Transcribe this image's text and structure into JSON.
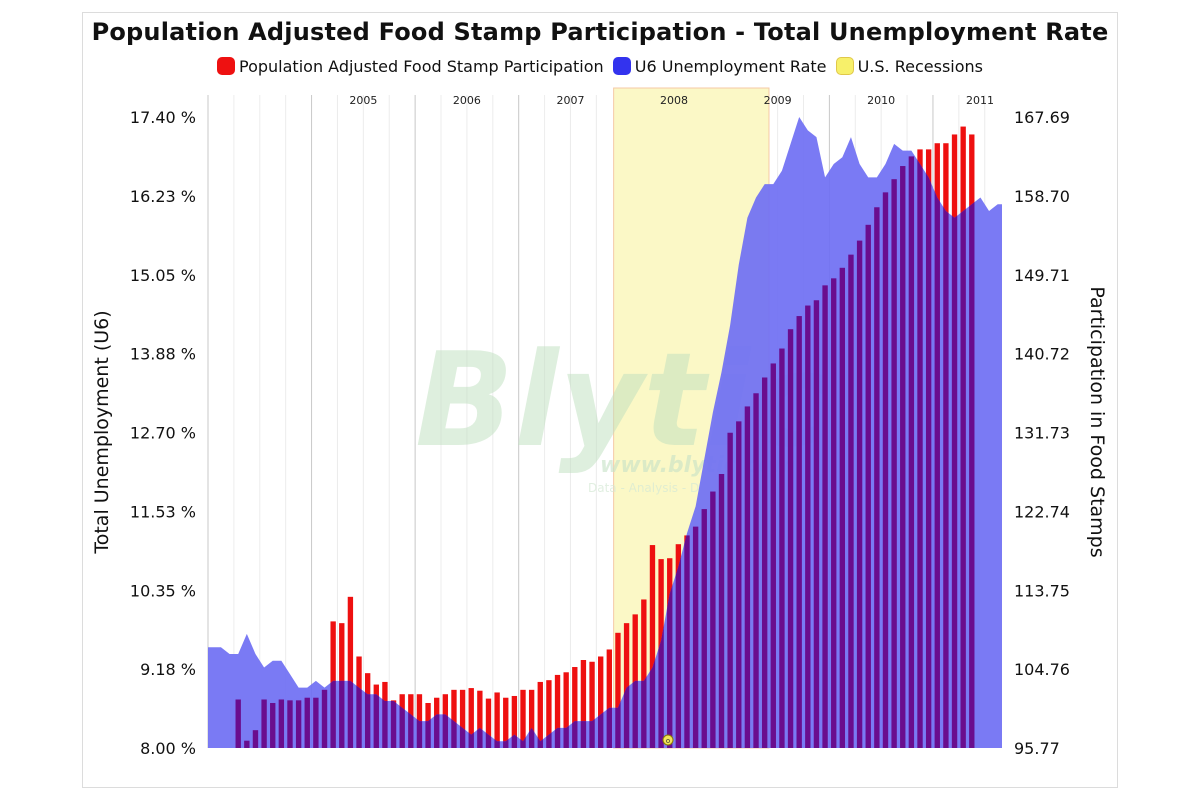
{
  "title": "Population Adjusted Food Stamp Participation - Total Unemployment Rate",
  "legend": [
    {
      "label": "Population Adjusted Food Stamp Participation",
      "color": "#ee1111"
    },
    {
      "label": "U6 Unemployment Rate",
      "color": "#3333ee"
    },
    {
      "label": "U.S. Recessions",
      "color": "#f7f06a"
    }
  ],
  "watermark": {
    "logo": "Blytic",
    "url": "www.blytic.com",
    "tagline": "Data - Analysis - D"
  },
  "marker_label": "o",
  "chart_data": {
    "type": "bar+area",
    "title": "Population Adjusted Food Stamp Participation - Total Unemployment Rate",
    "left_axis": {
      "label": "Total Unemployment (U6)",
      "ticks": [
        "17.40 %",
        "16.23 %",
        "15.05 %",
        "13.88 %",
        "12.70 %",
        "11.53 %",
        "10.35 %",
        "9.18 %",
        "8.00 %"
      ],
      "range": [
        8.0,
        17.4
      ]
    },
    "right_axis": {
      "label": "Participation in Food Stamps",
      "ticks": [
        "167.69",
        "158.70",
        "149.71",
        "140.72",
        "131.73",
        "122.74",
        "113.75",
        "104.76",
        "95.77"
      ],
      "range": [
        95.77,
        167.69
      ]
    },
    "x_labels": [
      "2005",
      "2006",
      "2007",
      "2008",
      "2009",
      "2010",
      "2011"
    ],
    "recession": {
      "start": "2007-12",
      "end": "2009-06"
    },
    "series": [
      {
        "name": "U6 Unemployment Rate",
        "type": "area",
        "axis": "left",
        "start": "2004-01",
        "values": [
          9.5,
          9.5,
          9.4,
          9.4,
          9.7,
          9.4,
          9.2,
          9.3,
          9.3,
          9.1,
          8.9,
          8.9,
          9.0,
          8.9,
          9.0,
          9.0,
          9.0,
          8.9,
          8.8,
          8.8,
          8.7,
          8.7,
          8.6,
          8.5,
          8.4,
          8.4,
          8.5,
          8.5,
          8.4,
          8.3,
          8.2,
          8.3,
          8.2,
          8.1,
          8.1,
          8.2,
          8.1,
          8.3,
          8.1,
          8.2,
          8.3,
          8.3,
          8.4,
          8.4,
          8.4,
          8.5,
          8.6,
          8.6,
          8.9,
          9.0,
          9.0,
          9.2,
          9.6,
          10.3,
          10.7,
          11.2,
          11.6,
          12.3,
          13.0,
          13.6,
          14.3,
          15.2,
          15.9,
          16.2,
          16.4,
          16.4,
          16.6,
          17.0,
          17.4,
          17.2,
          17.1,
          16.5,
          16.7,
          16.8,
          17.1,
          16.7,
          16.5,
          16.5,
          16.7,
          17.0,
          16.9,
          16.9,
          16.7,
          16.5,
          16.2,
          16.0,
          15.9,
          16.0,
          16.1,
          16.2,
          16.0,
          16.1
        ]
      },
      {
        "name": "Population Adjusted Food Stamp Participation",
        "type": "bar",
        "axis": "right",
        "start": "2004-04",
        "values": [
          101.3,
          96.6,
          97.8,
          101.3,
          100.9,
          101.3,
          101.2,
          101.2,
          101.5,
          101.5,
          102.4,
          110.2,
          110.0,
          113.0,
          106.2,
          104.3,
          103.0,
          103.3,
          101.2,
          101.9,
          101.9,
          101.9,
          100.9,
          101.5,
          101.9,
          102.4,
          102.4,
          102.6,
          102.3,
          101.4,
          102.1,
          101.5,
          101.7,
          102.4,
          102.4,
          103.3,
          103.5,
          104.1,
          104.4,
          105.0,
          105.8,
          105.6,
          106.2,
          107.0,
          108.9,
          110.0,
          111.0,
          112.7,
          118.9,
          117.3,
          117.4,
          119.0,
          120.0,
          121.0,
          123.0,
          125.0,
          127.0,
          131.7,
          133.0,
          134.7,
          136.2,
          138.0,
          139.6,
          141.3,
          143.5,
          145.0,
          146.2,
          146.8,
          148.5,
          149.3,
          150.5,
          152.0,
          153.6,
          155.4,
          157.4,
          159.1,
          160.6,
          162.1,
          163.2,
          164.0,
          164.0,
          164.7,
          164.7,
          165.7,
          166.6,
          165.7
        ]
      }
    ]
  }
}
